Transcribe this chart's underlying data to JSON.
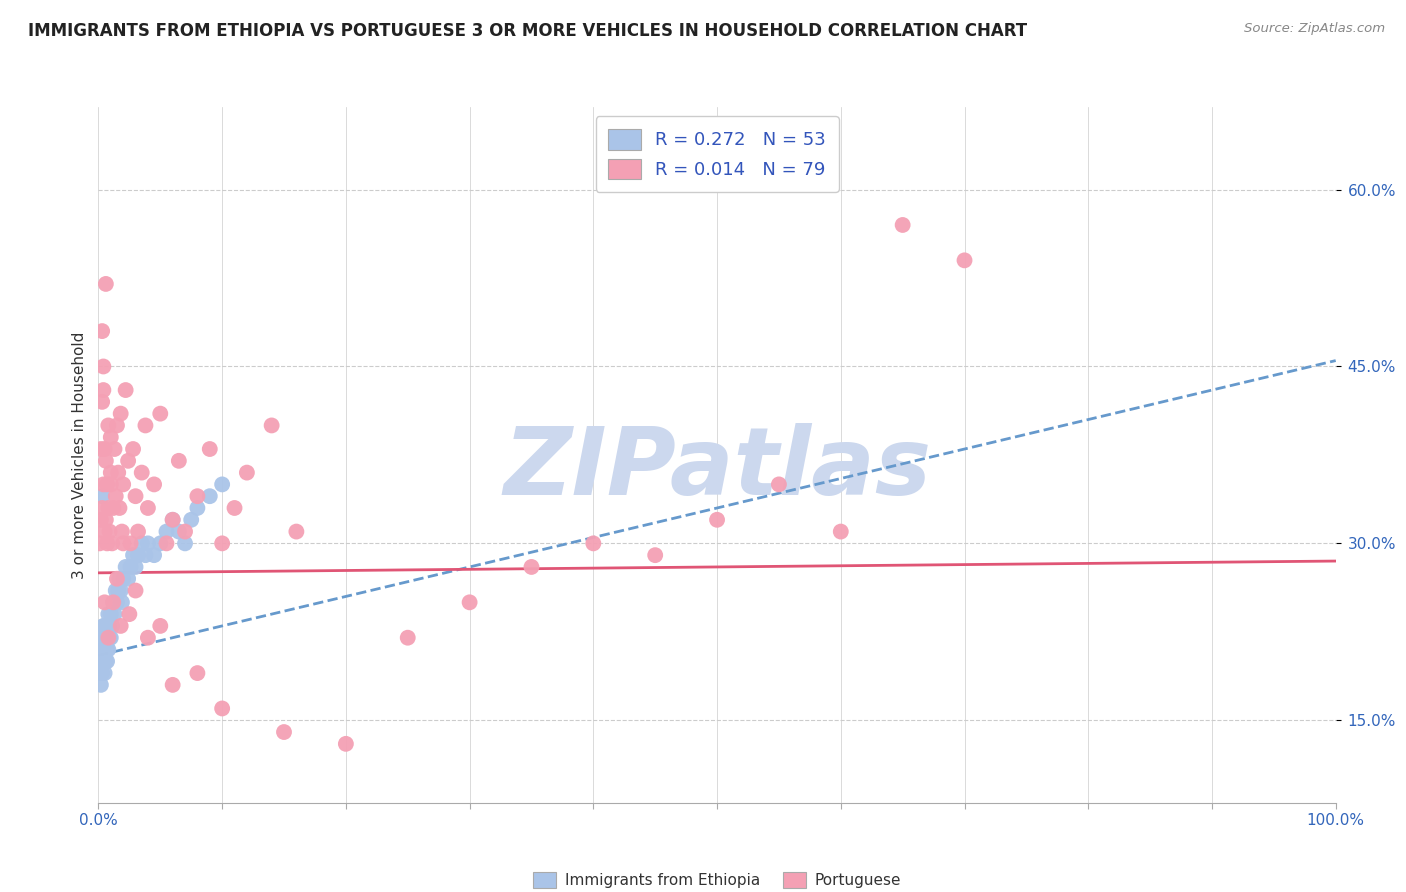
{
  "title": "IMMIGRANTS FROM ETHIOPIA VS PORTUGUESE 3 OR MORE VEHICLES IN HOUSEHOLD CORRELATION CHART",
  "source": "Source: ZipAtlas.com",
  "ylabel": "3 or more Vehicles in Household",
  "xlim": [
    0.0,
    1.0
  ],
  "ylim": [
    0.08,
    0.67
  ],
  "yticks": [
    0.15,
    0.3,
    0.45,
    0.6
  ],
  "ytick_labels": [
    "15.0%",
    "30.0%",
    "45.0%",
    "60.0%"
  ],
  "xticks": [
    0.0,
    1.0
  ],
  "xtick_labels": [
    "0.0%",
    "100.0%"
  ],
  "series1_name": "Immigrants from Ethiopia",
  "series1_color": "#aac4e8",
  "series1_line_color": "#6699cc",
  "series1_R": 0.272,
  "series1_N": 53,
  "series2_name": "Portuguese",
  "series2_color": "#f4a0b4",
  "series2_line_color": "#e05575",
  "series2_R": 0.014,
  "series2_N": 79,
  "series1_x": [
    0.001,
    0.002,
    0.002,
    0.003,
    0.003,
    0.003,
    0.004,
    0.004,
    0.005,
    0.005,
    0.005,
    0.006,
    0.006,
    0.007,
    0.007,
    0.007,
    0.008,
    0.008,
    0.008,
    0.009,
    0.009,
    0.01,
    0.01,
    0.011,
    0.012,
    0.013,
    0.014,
    0.015,
    0.016,
    0.017,
    0.018,
    0.019,
    0.02,
    0.022,
    0.024,
    0.026,
    0.028,
    0.03,
    0.032,
    0.035,
    0.038,
    0.04,
    0.045,
    0.05,
    0.055,
    0.06,
    0.065,
    0.07,
    0.075,
    0.08,
    0.09,
    0.1,
    0.003
  ],
  "series1_y": [
    0.19,
    0.2,
    0.18,
    0.21,
    0.19,
    0.22,
    0.2,
    0.23,
    0.19,
    0.21,
    0.23,
    0.2,
    0.22,
    0.21,
    0.23,
    0.2,
    0.22,
    0.21,
    0.24,
    0.22,
    0.23,
    0.22,
    0.24,
    0.23,
    0.25,
    0.24,
    0.26,
    0.25,
    0.26,
    0.27,
    0.26,
    0.25,
    0.27,
    0.28,
    0.27,
    0.28,
    0.29,
    0.28,
    0.29,
    0.3,
    0.29,
    0.3,
    0.29,
    0.3,
    0.31,
    0.32,
    0.31,
    0.3,
    0.32,
    0.33,
    0.34,
    0.35,
    0.34
  ],
  "series2_x": [
    0.001,
    0.002,
    0.002,
    0.003,
    0.003,
    0.004,
    0.004,
    0.005,
    0.005,
    0.006,
    0.006,
    0.007,
    0.007,
    0.008,
    0.008,
    0.009,
    0.01,
    0.01,
    0.011,
    0.012,
    0.013,
    0.014,
    0.015,
    0.016,
    0.017,
    0.018,
    0.019,
    0.02,
    0.022,
    0.024,
    0.026,
    0.028,
    0.03,
    0.032,
    0.035,
    0.038,
    0.04,
    0.045,
    0.05,
    0.055,
    0.06,
    0.065,
    0.07,
    0.08,
    0.09,
    0.1,
    0.11,
    0.12,
    0.14,
    0.16,
    0.005,
    0.008,
    0.01,
    0.012,
    0.015,
    0.018,
    0.02,
    0.025,
    0.03,
    0.04,
    0.05,
    0.06,
    0.08,
    0.1,
    0.15,
    0.2,
    0.25,
    0.3,
    0.35,
    0.4,
    0.45,
    0.5,
    0.55,
    0.6,
    0.65,
    0.7,
    0.003,
    0.004,
    0.006
  ],
  "series2_y": [
    0.3,
    0.32,
    0.38,
    0.33,
    0.42,
    0.35,
    0.43,
    0.31,
    0.38,
    0.32,
    0.37,
    0.3,
    0.35,
    0.4,
    0.33,
    0.31,
    0.36,
    0.39,
    0.3,
    0.33,
    0.38,
    0.34,
    0.4,
    0.36,
    0.33,
    0.41,
    0.31,
    0.35,
    0.43,
    0.37,
    0.3,
    0.38,
    0.34,
    0.31,
    0.36,
    0.4,
    0.33,
    0.35,
    0.41,
    0.3,
    0.32,
    0.37,
    0.31,
    0.34,
    0.38,
    0.3,
    0.33,
    0.36,
    0.4,
    0.31,
    0.25,
    0.22,
    0.35,
    0.25,
    0.27,
    0.23,
    0.3,
    0.24,
    0.26,
    0.22,
    0.23,
    0.18,
    0.19,
    0.16,
    0.14,
    0.13,
    0.22,
    0.25,
    0.28,
    0.3,
    0.29,
    0.32,
    0.35,
    0.31,
    0.57,
    0.54,
    0.48,
    0.45,
    0.52
  ],
  "watermark": "ZIPatlas",
  "watermark_color": "#ccd8ee",
  "background_color": "#ffffff",
  "grid_color": "#cccccc",
  "title_fontsize": 12,
  "axis_label_fontsize": 11,
  "tick_fontsize": 11,
  "legend_fontsize": 13
}
